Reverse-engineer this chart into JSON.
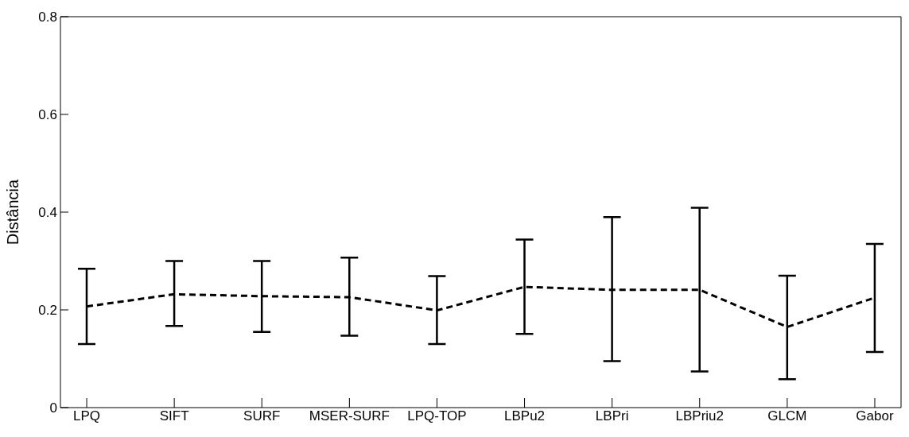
{
  "chart_data": {
    "type": "line",
    "ylabel": "Distância",
    "categories": [
      "LPQ",
      "SIFT",
      "SURF",
      "MSER-SURF",
      "LPQ-TOP",
      "LBPu2",
      "LBPri",
      "LBPriu2",
      "GLCM",
      "Gabor"
    ],
    "values": [
      0.207,
      0.232,
      0.228,
      0.226,
      0.199,
      0.247,
      0.241,
      0.241,
      0.165,
      0.225
    ],
    "errors": [
      [
        0.13,
        0.284
      ],
      [
        0.167,
        0.3
      ],
      [
        0.155,
        0.3
      ],
      [
        0.147,
        0.307
      ],
      [
        0.13,
        0.269
      ],
      [
        0.151,
        0.344
      ],
      [
        0.095,
        0.39
      ],
      [
        0.074,
        0.409
      ],
      [
        0.058,
        0.27
      ],
      [
        0.114,
        0.335
      ]
    ],
    "color": "#000000",
    "line_style": "dashed",
    "marker": "none",
    "ylim": [
      0,
      0.8
    ],
    "yticks": [
      0,
      0.2,
      0.4,
      0.6,
      0.8
    ],
    "grid": false,
    "legend": false
  }
}
